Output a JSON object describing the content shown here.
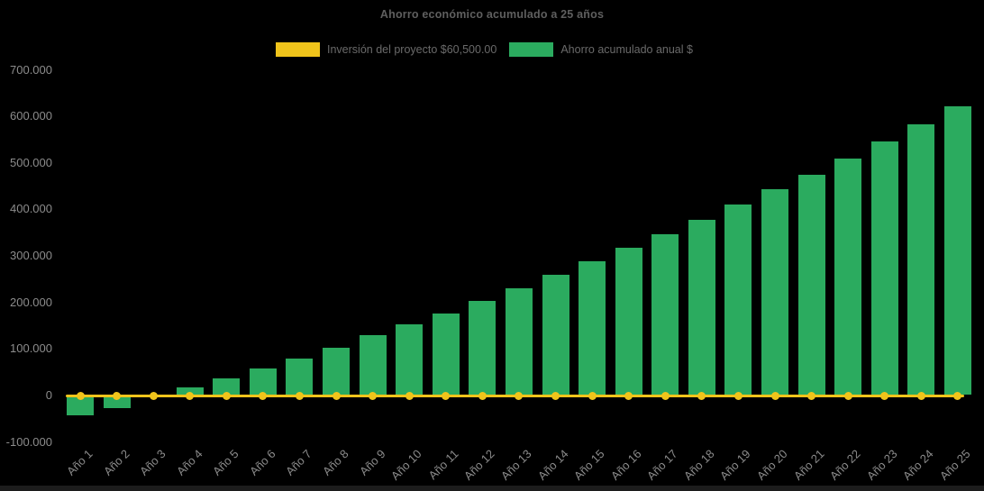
{
  "title": "Ahorro económico acumulado a 25 años",
  "legend": {
    "items": [
      {
        "label": "Inversión del proyecto $60,500.00",
        "color": "#F0C41B",
        "series": "investment-line"
      },
      {
        "label": "Ahorro acumulado anual $",
        "color": "#2BAB5F",
        "series": "savings-bars"
      }
    ]
  },
  "chart_data": {
    "type": "bar",
    "title": "Ahorro económico acumulado a 25 años",
    "categories": [
      "Año 1",
      "Año 2",
      "Año 3",
      "Año 4",
      "Año 5",
      "Año 6",
      "Año 7",
      "Año 8",
      "Año 9",
      "Año 10",
      "Año 11",
      "Año 12",
      "Año 13",
      "Año 14",
      "Año 15",
      "Año 16",
      "Año 17",
      "Año 18",
      "Año 19",
      "Año 20",
      "Año 21",
      "Año 22",
      "Año 23",
      "Año 24",
      "Año 25"
    ],
    "series": [
      {
        "name": "Ahorro acumulado anual $",
        "type": "bar",
        "color": "#2BAB5F",
        "values": [
          -44000,
          -29000,
          -2000,
          16000,
          35000,
          56000,
          79000,
          102000,
          128000,
          152000,
          175000,
          203000,
          230000,
          258000,
          287000,
          316000,
          345000,
          376000,
          409000,
          442000,
          473000,
          508000,
          545000,
          582000,
          620000
        ]
      },
      {
        "name": "Inversión del proyecto $60,500.00",
        "type": "line",
        "color": "#F0C41B",
        "marker": "circle",
        "values": [
          0,
          0,
          0,
          0,
          0,
          0,
          0,
          0,
          0,
          0,
          0,
          0,
          0,
          0,
          0,
          0,
          0,
          0,
          0,
          0,
          0,
          0,
          0,
          0,
          0
        ]
      }
    ],
    "xlabel": "",
    "ylabel": "",
    "ylim": [
      -100000,
      700000
    ],
    "ytick_step": 100000,
    "ytick_labels": [
      "700.000",
      "600.000",
      "500.000",
      "400.000",
      "300.000",
      "200.000",
      "100.000",
      "0",
      "-100.000"
    ],
    "grid": false,
    "legend_position": "top-center",
    "background": "#000000",
    "bottom_edge_color": "#1c1c1c"
  }
}
